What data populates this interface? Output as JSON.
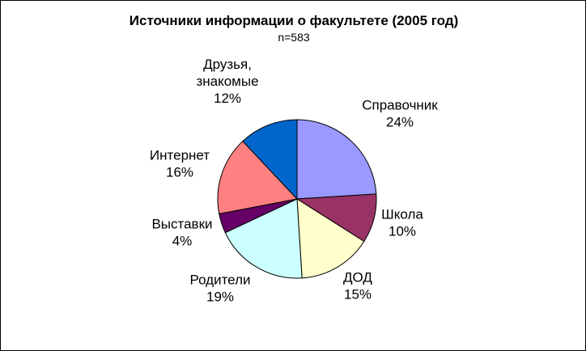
{
  "chart_data": {
    "type": "pie",
    "title": "Источники информации о факультете (2005 год)",
    "subtitle": "n=583",
    "slices": [
      {
        "label": [
          "Справочник"
        ],
        "value": 24,
        "value_label": "24%",
        "color": "#9999ff"
      },
      {
        "label": [
          "Школа"
        ],
        "value": 10,
        "value_label": "10%",
        "color": "#993366"
      },
      {
        "label": [
          "ДОД"
        ],
        "value": 15,
        "value_label": "15%",
        "color": "#ffffcc"
      },
      {
        "label": [
          "Родители"
        ],
        "value": 19,
        "value_label": "19%",
        "color": "#ccffff"
      },
      {
        "label": [
          "Выставки"
        ],
        "value": 4,
        "value_label": "4%",
        "color": "#660066"
      },
      {
        "label": [
          "Интернет"
        ],
        "value": 16,
        "value_label": "16%",
        "color": "#ff8080"
      },
      {
        "label": [
          "Друзья,",
          "знакомые"
        ],
        "value": 12,
        "value_label": "12%",
        "color": "#0066cc"
      }
    ],
    "start": "12 o'clock",
    "direction": "clockwise",
    "legend": "none"
  }
}
